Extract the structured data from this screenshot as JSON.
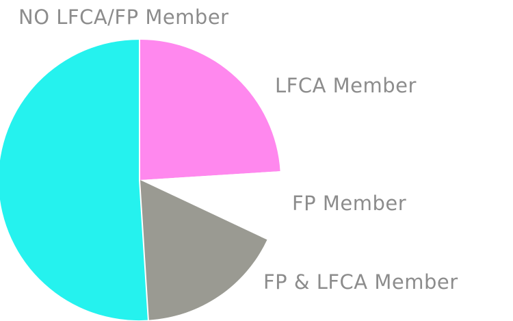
{
  "chart_data": {
    "type": "pie",
    "slices": [
      {
        "label": "LFCA Member",
        "value": 24,
        "color": "#ff88ee",
        "exploded": false
      },
      {
        "label": "FP Member",
        "value": 8,
        "color": "#ffffff",
        "exploded": false
      },
      {
        "label": "FP & LFCA Member",
        "value": 17,
        "color": "#9a9a92",
        "exploded": false
      },
      {
        "label": "NO LFCA/FP Member",
        "value": 51,
        "color": "#25f2ee",
        "exploded": true
      }
    ],
    "label_color": "#8c8c8c"
  }
}
